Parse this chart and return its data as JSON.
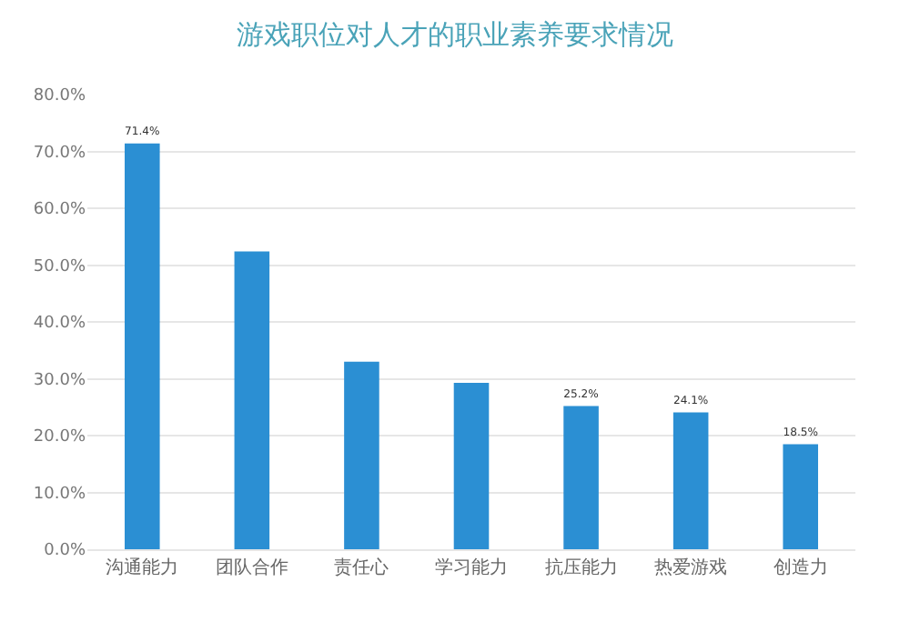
{
  "chart_data": {
    "type": "bar",
    "title": "游戏职位对人才的职业素养要求情况",
    "categories": [
      "沟通能力",
      "团队合作",
      "责任心",
      "学习能力",
      "抗压能力",
      "热爱游戏",
      "创造力"
    ],
    "values": [
      71.4,
      52.4,
      33.0,
      29.3,
      25.2,
      24.1,
      18.5
    ],
    "value_labels": [
      "71.4%",
      null,
      null,
      null,
      "25.2%",
      "24.1%",
      "18.5%"
    ],
    "color": "#2b8fd3",
    "ylim": [
      0,
      80
    ],
    "yticks": [
      {
        "value": 0,
        "label": "0.0%"
      },
      {
        "value": 10,
        "label": "10.0%"
      },
      {
        "value": 20,
        "label": "20.0%"
      },
      {
        "value": 30,
        "label": "30.0%"
      },
      {
        "value": 40,
        "label": "40.0%"
      },
      {
        "value": 50,
        "label": "50.0%"
      },
      {
        "value": 60,
        "label": "60.0%"
      },
      {
        "value": 70,
        "label": "70.0%"
      },
      {
        "value": 80,
        "label": "80.0%"
      }
    ],
    "grid": "y"
  }
}
